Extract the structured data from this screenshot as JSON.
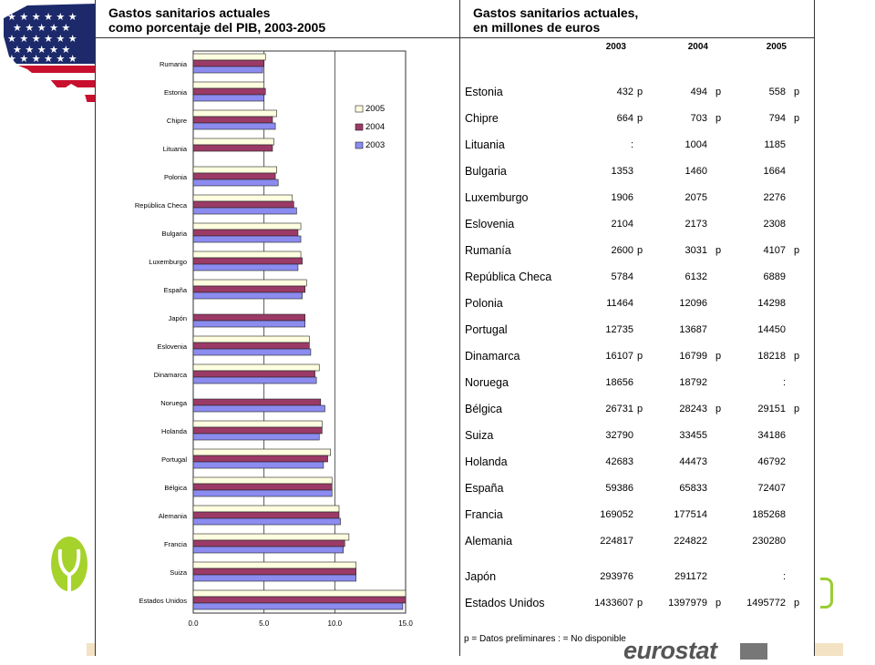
{
  "left_panel": {
    "title_line1": "Gastos sanitarios actuales",
    "title_line2": "como porcentaje del PIB, 2003-2005"
  },
  "right_panel": {
    "title_line1": "Gastos sanitarios actuales,",
    "title_line2": "en millones de euros",
    "headers": [
      "2003",
      "2004",
      "2005"
    ],
    "rows": [
      {
        "country": "Estonia",
        "v2003": "432",
        "f2003": "p",
        "v2004": "494",
        "f2004": "p",
        "v2005": "558",
        "f2005": "p"
      },
      {
        "country": "Chipre",
        "v2003": "664",
        "f2003": "p",
        "v2004": "703",
        "f2004": "p",
        "v2005": "794",
        "f2005": "p"
      },
      {
        "country": "Lituania",
        "v2003": ":",
        "f2003": "",
        "v2004": "1004",
        "f2004": "",
        "v2005": "1185",
        "f2005": ""
      },
      {
        "country": "Bulgaria",
        "v2003": "1353",
        "f2003": "",
        "v2004": "1460",
        "f2004": "",
        "v2005": "1664",
        "f2005": ""
      },
      {
        "country": "Luxemburgo",
        "v2003": "1906",
        "f2003": "",
        "v2004": "2075",
        "f2004": "",
        "v2005": "2276",
        "f2005": ""
      },
      {
        "country": "Eslovenia",
        "v2003": "2104",
        "f2003": "",
        "v2004": "2173",
        "f2004": "",
        "v2005": "2308",
        "f2005": ""
      },
      {
        "country": "Rumanía",
        "v2003": "2600",
        "f2003": "p",
        "v2004": "3031",
        "f2004": "p",
        "v2005": "4107",
        "f2005": "p"
      },
      {
        "country": "República Checa",
        "v2003": "5784",
        "f2003": "",
        "v2004": "6132",
        "f2004": "",
        "v2005": "6889",
        "f2005": ""
      },
      {
        "country": "Polonia",
        "v2003": "11464",
        "f2003": "",
        "v2004": "12096",
        "f2004": "",
        "v2005": "14298",
        "f2005": ""
      },
      {
        "country": "Portugal",
        "v2003": "12735",
        "f2003": "",
        "v2004": "13687",
        "f2004": "",
        "v2005": "14450",
        "f2005": ""
      },
      {
        "country": "Dinamarca",
        "v2003": "16107",
        "f2003": "p",
        "v2004": "16799",
        "f2004": "p",
        "v2005": "18218",
        "f2005": "p"
      },
      {
        "country": "Noruega",
        "v2003": "18656",
        "f2003": "",
        "v2004": "18792",
        "f2004": "",
        "v2005": ":",
        "f2005": ""
      },
      {
        "country": "Bélgica",
        "v2003": "26731",
        "f2003": "p",
        "v2004": "28243",
        "f2004": "p",
        "v2005": "29151",
        "f2005": "p"
      },
      {
        "country": "Suiza",
        "v2003": "32790",
        "f2003": "",
        "v2004": "33455",
        "f2004": "",
        "v2005": "34186",
        "f2005": ""
      },
      {
        "country": "Holanda",
        "v2003": "42683",
        "f2003": "",
        "v2004": "44473",
        "f2004": "",
        "v2005": "46792",
        "f2005": ""
      },
      {
        "country": "España",
        "v2003": "59386",
        "f2003": "",
        "v2004": "65833",
        "f2004": "",
        "v2005": "72407",
        "f2005": ""
      },
      {
        "country": "Francia",
        "v2003": "169052",
        "f2003": "",
        "v2004": "177514",
        "f2004": "",
        "v2005": "185268",
        "f2005": ""
      },
      {
        "country": "Alemania",
        "v2003": "224817",
        "f2003": "",
        "v2004": "224822",
        "f2004": "",
        "v2005": "230280",
        "f2005": ""
      },
      {
        "country": "Japón",
        "v2003": "293976",
        "f2003": "",
        "v2004": "291172",
        "f2004": "",
        "v2005": ":",
        "f2005": ""
      },
      {
        "country": "Estados Unidos",
        "v2003": "1433607",
        "f2003": "p",
        "v2004": "1397979",
        "f2004": "p",
        "v2005": "1495772",
        "f2005": "p"
      }
    ],
    "note": "p = Datos preliminares   : = No disponible",
    "logo_text": "eurostat"
  },
  "colors": {
    "y2005": "#ffffe0",
    "y2004": "#9b3a67",
    "y2003": "#8b8bf0"
  },
  "chart_data": {
    "type": "bar",
    "orientation": "horizontal",
    "title": "Gastos sanitarios actuales como porcentaje del PIB, 2003-2005",
    "categories": [
      "Rumania",
      "Estonia",
      "Chipre",
      "Lituania",
      "Polonia",
      "República Checa",
      "Bulgaria",
      "Luxemburgo",
      "España",
      "Japón",
      "Eslovenia",
      "Dinamarca",
      "Noruega",
      "Holanda",
      "Portugal",
      "Bélgica",
      "Alemania",
      "Francia",
      "Suiza",
      "Estados Unidos"
    ],
    "series": [
      {
        "name": "2005",
        "values": [
          5.1,
          5.0,
          5.9,
          5.7,
          5.9,
          7.0,
          7.6,
          7.6,
          8.0,
          null,
          8.2,
          8.9,
          null,
          9.1,
          9.7,
          9.8,
          10.3,
          11.0,
          11.5,
          15.0
        ]
      },
      {
        "name": "2004",
        "values": [
          5.0,
          5.1,
          5.6,
          5.6,
          5.8,
          7.1,
          7.4,
          7.7,
          7.9,
          7.9,
          8.2,
          8.6,
          9.0,
          9.1,
          9.5,
          9.8,
          10.3,
          10.7,
          11.5,
          15.0
        ]
      },
      {
        "name": "2003",
        "values": [
          4.9,
          5.0,
          5.8,
          null,
          6.0,
          7.3,
          7.6,
          7.4,
          7.7,
          7.9,
          8.3,
          8.7,
          9.3,
          8.9,
          9.2,
          9.8,
          10.4,
          10.6,
          11.5,
          14.8
        ]
      }
    ],
    "xlim": [
      0,
      15
    ],
    "xticks": [
      "0.0",
      "5.0",
      "10.0",
      "15.0"
    ],
    "legend": [
      "2005",
      "2004",
      "2003"
    ],
    "legend_position": "right"
  }
}
